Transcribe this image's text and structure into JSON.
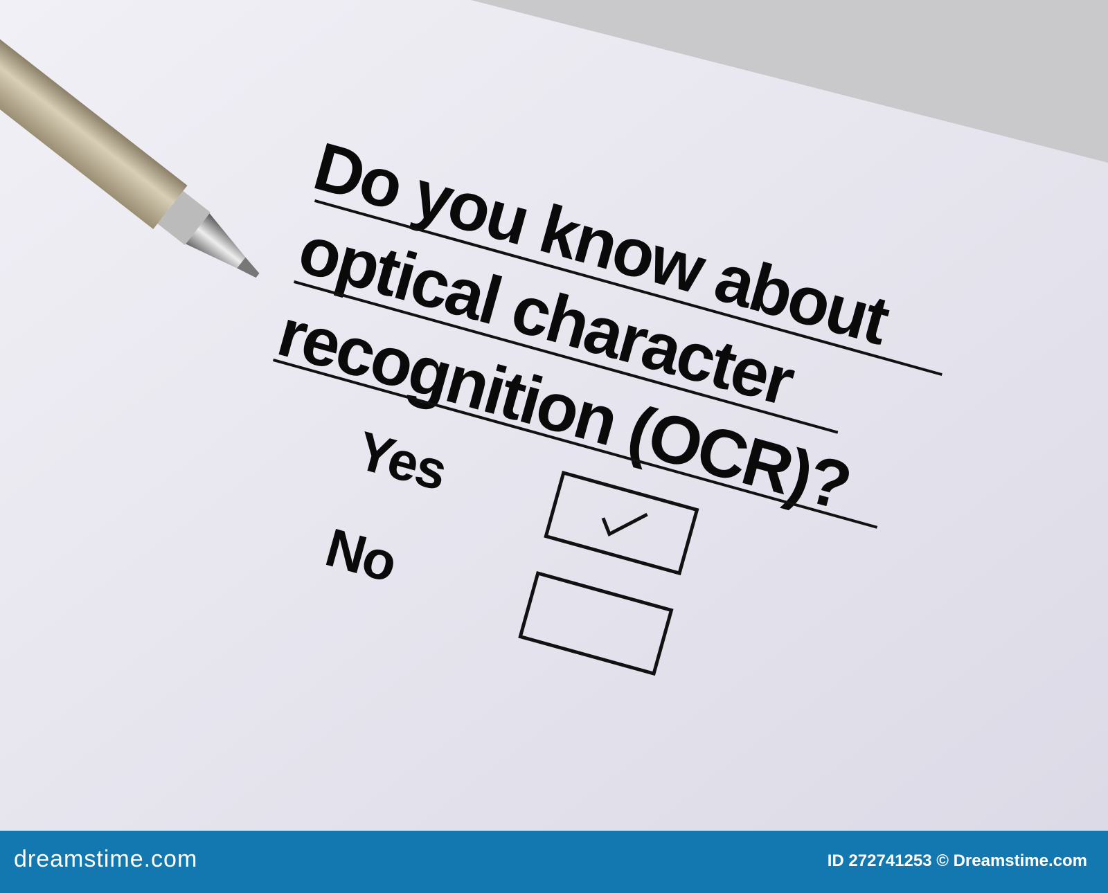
{
  "question": {
    "lines": [
      "Do you know about",
      "optical character",
      "recognition (OCR)?"
    ]
  },
  "options": [
    {
      "label": "Yes",
      "checked": true
    },
    {
      "label": "No",
      "checked": false
    }
  ],
  "banner": {
    "logo": "dreamstime.com",
    "credit": "ID 272741253 © Dreamstime.com",
    "color": "#1378b0"
  },
  "watermark": "dreamstime"
}
